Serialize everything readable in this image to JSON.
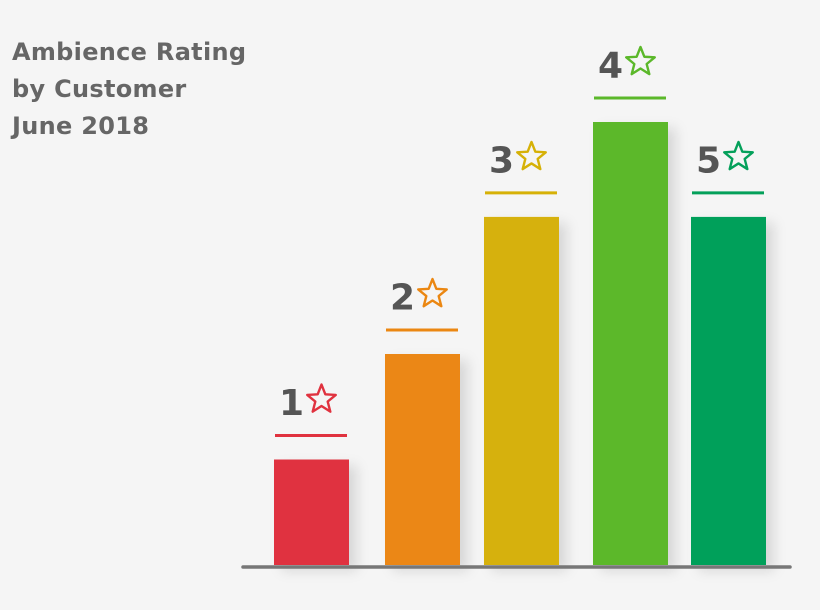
{
  "chart_data": {
    "type": "bar",
    "title_lines": [
      "Ambience Rating",
      "by Customer",
      "June 2018"
    ],
    "categories": [
      "1",
      "2",
      "3",
      "4",
      "5"
    ],
    "values": [
      1.0,
      2.0,
      3.3,
      4.2,
      3.3
    ],
    "ylim": [
      0,
      4.2
    ],
    "xlabel": "",
    "ylabel": "",
    "colors": [
      "#e0323f",
      "#eb8712",
      "#d6b107",
      "#5bb82a",
      "#04a05a"
    ],
    "category_icon": "star-outline-icon",
    "axis_color": "#777777"
  }
}
